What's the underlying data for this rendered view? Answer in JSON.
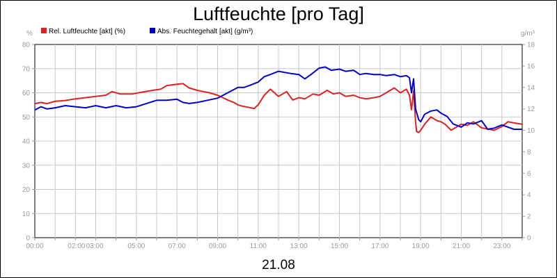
{
  "chart_data": {
    "type": "line",
    "title": "Luftfeuchte [pro Tag]",
    "date_label": "21.08",
    "y_left_unit": "%",
    "y_right_unit": "g/m³",
    "y_left_lim": [
      0,
      80
    ],
    "y_right_lim": [
      0,
      18
    ],
    "x_lim": [
      0,
      24
    ],
    "grid": true,
    "legend_placement": "top-left",
    "x_ticks": [
      {
        "v": 0,
        "label": "00:00"
      },
      {
        "v": 2,
        "label": "02:00"
      },
      {
        "v": 3,
        "label": "03:00"
      },
      {
        "v": 5,
        "label": "05:00"
      },
      {
        "v": 7,
        "label": "07:00"
      },
      {
        "v": 9,
        "label": "09:00"
      },
      {
        "v": 11,
        "label": "11:00"
      },
      {
        "v": 13,
        "label": "13:00"
      },
      {
        "v": 15,
        "label": "15:00"
      },
      {
        "v": 17,
        "label": "17:00"
      },
      {
        "v": 19,
        "label": "19:00"
      },
      {
        "v": 21,
        "label": "21:00"
      },
      {
        "v": 23,
        "label": "23:00"
      }
    ],
    "y_left_ticks": [
      0,
      10,
      20,
      30,
      40,
      50,
      60,
      70,
      80
    ],
    "y_right_ticks": [
      0,
      2,
      4,
      6,
      8,
      10,
      12,
      14,
      16,
      18
    ],
    "series": [
      {
        "name": "Rel. Luftfeuchte [akt] (%)",
        "color": "#e02020",
        "axis": "left",
        "x": [
          0,
          0.3,
          0.6,
          1,
          1.5,
          2,
          2.5,
          3,
          3.5,
          3.8,
          4.2,
          4.8,
          5.3,
          5.8,
          6.2,
          6.5,
          7,
          7.3,
          7.6,
          8,
          8.3,
          8.6,
          9,
          9.5,
          9.8,
          10,
          10.2,
          10.5,
          10.8,
          11,
          11.3,
          11.6,
          12,
          12.4,
          12.7,
          13,
          13.3,
          13.7,
          14,
          14.4,
          14.7,
          15,
          15.3,
          15.7,
          16,
          16.3,
          16.7,
          17,
          17.3,
          17.7,
          18,
          18.3,
          18.45,
          18.55,
          18.65,
          18.75,
          18.8,
          18.9,
          19,
          19.2,
          19.5,
          19.8,
          20,
          20.2,
          20.5,
          20.8,
          21,
          21.3,
          21.6,
          22,
          22.3,
          22.6,
          23,
          23.3,
          23.6,
          24
        ],
        "y": [
          55.5,
          56,
          55.5,
          56.5,
          56.8,
          57.5,
          58,
          58.5,
          59,
          60.5,
          59.5,
          59.5,
          60.3,
          61,
          61.5,
          63,
          63.5,
          63.8,
          62,
          61,
          60.5,
          60,
          59,
          57,
          56,
          55,
          54.5,
          54,
          53.5,
          55,
          59,
          61.5,
          58.5,
          60.5,
          57,
          58,
          57.5,
          59.5,
          59,
          61,
          59.5,
          60,
          58.5,
          59,
          58,
          57.5,
          58,
          58.5,
          60,
          62,
          60,
          61.5,
          59,
          53,
          60.8,
          48,
          44,
          43.5,
          44.5,
          47,
          50,
          48.5,
          48,
          47,
          44.5,
          46,
          47,
          46.5,
          48,
          45.5,
          45,
          44.5,
          46,
          48,
          47.5,
          47
        ]
      },
      {
        "name": "Abs. Feuchtegehalt [akt] (g/m³)",
        "color": "#0000cc",
        "axis": "right",
        "x": [
          0,
          0.3,
          0.6,
          1,
          1.5,
          2,
          2.5,
          3,
          3.5,
          4,
          4.5,
          5,
          5.5,
          6,
          6.5,
          7,
          7.3,
          7.6,
          8,
          8.5,
          9,
          9.5,
          10,
          10.3,
          10.6,
          11,
          11.3,
          11.6,
          12,
          12.3,
          12.6,
          13,
          13.3,
          13.6,
          14,
          14.3,
          14.6,
          15,
          15.3,
          15.7,
          16,
          16.3,
          16.7,
          17,
          17.3,
          17.7,
          18,
          18.3,
          18.45,
          18.55,
          18.65,
          18.75,
          18.9,
          19,
          19.2,
          19.5,
          19.8,
          20,
          20.3,
          20.6,
          21,
          21.3,
          21.6,
          22,
          22.3,
          22.6,
          23,
          23.3,
          23.6,
          24
        ],
        "y": [
          11.9,
          12.2,
          12,
          12.1,
          12.3,
          12.2,
          12.1,
          12.3,
          12.1,
          12.3,
          12.1,
          12.2,
          12.5,
          12.8,
          12.8,
          12.9,
          12.6,
          12.5,
          12.6,
          12.8,
          13,
          13.5,
          14,
          14,
          14.2,
          14.5,
          15,
          15.2,
          15.5,
          15.4,
          15.3,
          15.2,
          14.8,
          15.2,
          15.8,
          15.9,
          15.6,
          15.7,
          15.5,
          15.6,
          15.2,
          15.3,
          15.2,
          15.2,
          15.1,
          15.2,
          15,
          15.1,
          14.9,
          13.5,
          14.8,
          12,
          11,
          10.8,
          11.5,
          11.8,
          11.9,
          11.6,
          11.3,
          10.6,
          10.3,
          10.7,
          10.6,
          10.9,
          10.1,
          10.2,
          10.5,
          10.3,
          10.1,
          10.1
        ]
      }
    ]
  }
}
